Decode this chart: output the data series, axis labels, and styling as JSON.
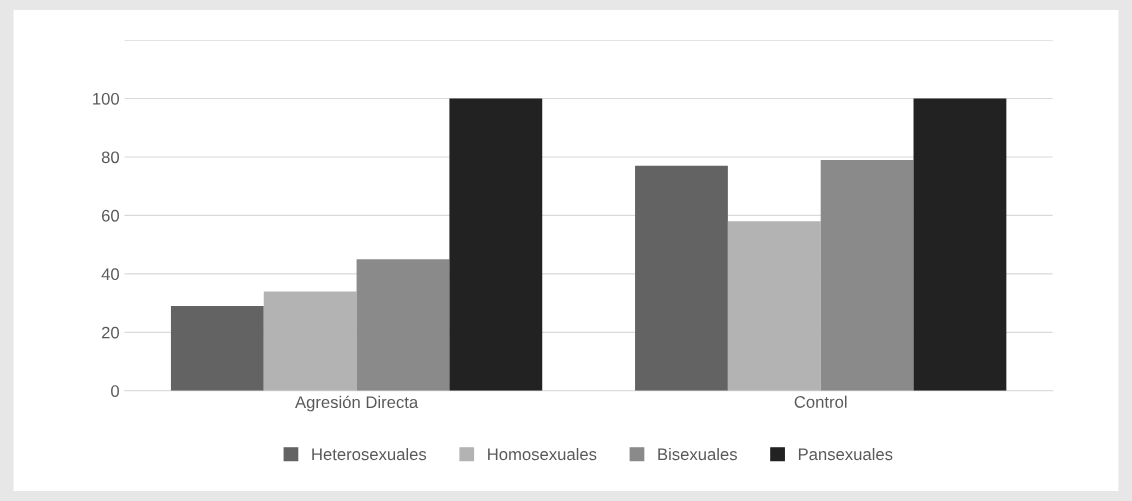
{
  "chart_data": {
    "type": "bar",
    "categories": [
      "Agresión Directa",
      "Control"
    ],
    "series": [
      {
        "name": "Heterosexuales",
        "color": "#636363",
        "values": [
          29,
          77
        ]
      },
      {
        "name": "Homosexuales",
        "color": "#b3b3b3",
        "values": [
          34,
          58
        ]
      },
      {
        "name": "Bisexuales",
        "color": "#8a8a8a",
        "values": [
          45,
          79
        ]
      },
      {
        "name": "Pansexuales",
        "color": "#222222",
        "values": [
          100,
          100
        ]
      }
    ],
    "ylim": [
      0,
      120
    ],
    "yticks": [
      0,
      20,
      40,
      60,
      80,
      100,
      {
        "value": 120,
        "label": null
      }
    ],
    "grid": "y",
    "legend": "bottom"
  }
}
